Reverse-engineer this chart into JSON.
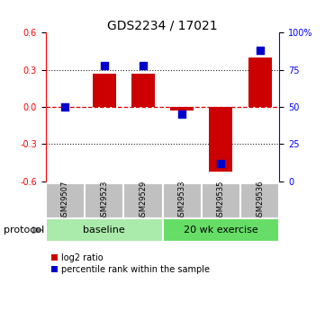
{
  "title": "GDS2234 / 17021",
  "samples": [
    "GSM29507",
    "GSM29523",
    "GSM29529",
    "GSM29533",
    "GSM29535",
    "GSM29536"
  ],
  "log2_ratio": [
    0.0,
    0.27,
    0.27,
    -0.03,
    -0.52,
    0.4
  ],
  "percentile_rank": [
    50,
    78,
    78,
    45,
    12,
    88
  ],
  "ylim": [
    -0.6,
    0.6
  ],
  "yticks_left": [
    -0.6,
    -0.3,
    0.0,
    0.3,
    0.6
  ],
  "yticks_right": [
    0,
    25,
    50,
    75,
    100
  ],
  "bar_color_red": "#CC0000",
  "dot_color_blue": "#0000CC",
  "bar_width": 0.6,
  "hline_color": "#DD0000",
  "dotted_color": "#222222",
  "sample_box_color": "#C0C0C0",
  "baseline_color": "#AAEAAA",
  "exercise_color": "#66DD66",
  "protocol_label": "protocol",
  "legend_red_label": "log2 ratio",
  "legend_blue_label": "percentile rank within the sample",
  "title_fontsize": 10,
  "tick_fontsize": 7,
  "sample_fontsize": 6,
  "group_fontsize": 8,
  "legend_fontsize": 7
}
